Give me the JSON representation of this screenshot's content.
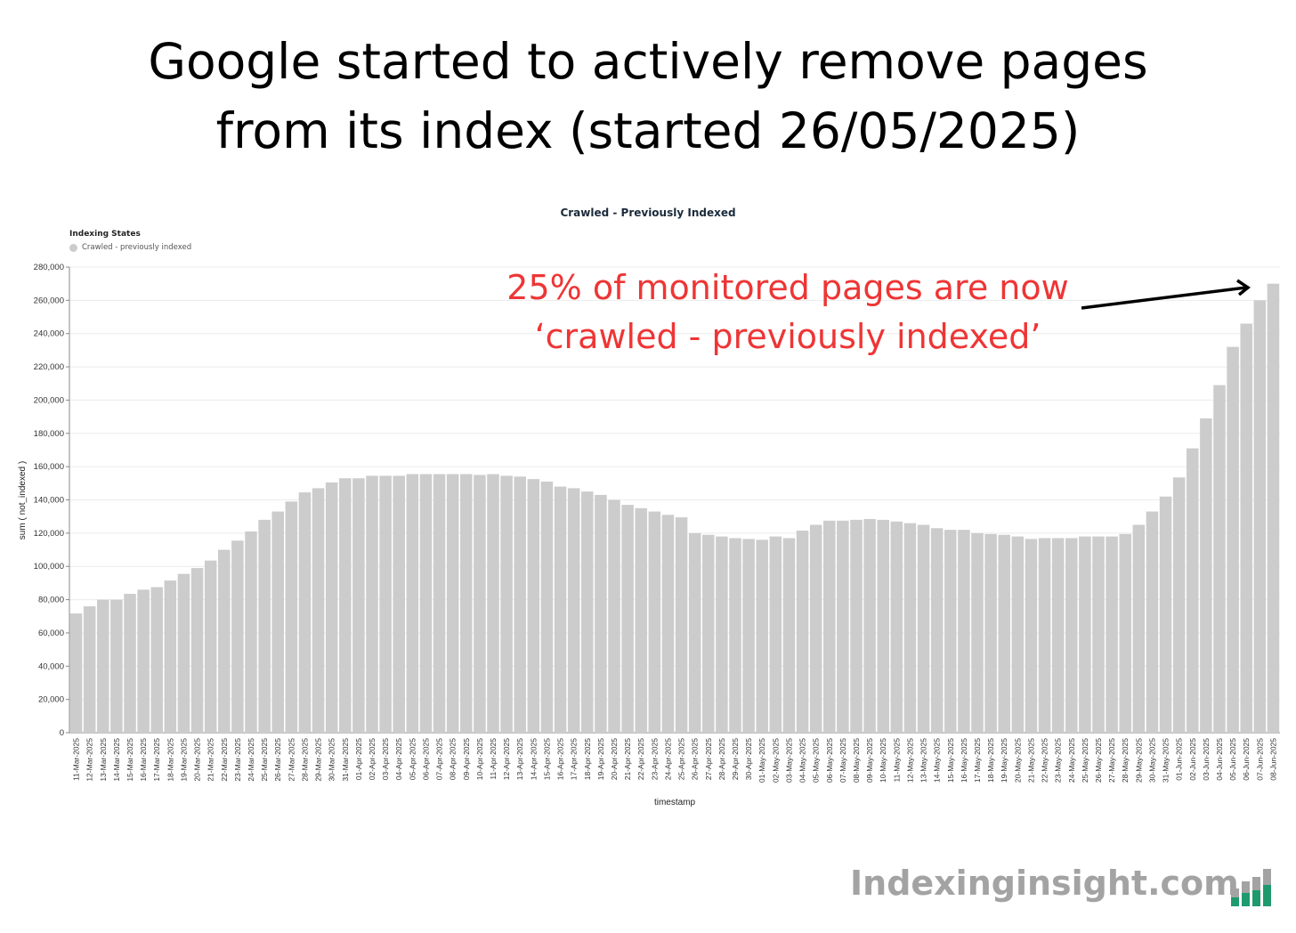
{
  "title_lines": [
    "Google started to actively remove pages",
    "from its index (started 26/05/2025)"
  ],
  "annotation_lines": [
    "25% of monitored pages are now",
    "‘crawled - previously indexed’"
  ],
  "logo_text": "Indexinginsight.com",
  "colors": {
    "bar": "#cccccc",
    "annotation": "#ee3535",
    "logo_green": "#1f9a6e",
    "logo_gray": "#a3a3a3"
  },
  "chart_data": {
    "type": "bar",
    "title": "Crawled - Previously Indexed",
    "xlabel": "timestamp",
    "ylabel": "sum ( not_indexed )",
    "ylim": [
      0,
      280000
    ],
    "yticks": [
      0,
      20000,
      40000,
      60000,
      80000,
      100000,
      120000,
      140000,
      160000,
      180000,
      200000,
      220000,
      240000,
      260000,
      280000
    ],
    "grid": true,
    "legend": {
      "title": "Indexing States",
      "placement": "top-left",
      "entries": [
        "Crawled - previously indexed"
      ]
    },
    "categories": [
      "11-Mar-2025",
      "12-Mar-2025",
      "13-Mar-2025",
      "14-Mar-2025",
      "15-Mar-2025",
      "16-Mar-2025",
      "17-Mar-2025",
      "18-Mar-2025",
      "19-Mar-2025",
      "20-Mar-2025",
      "21-Mar-2025",
      "22-Mar-2025",
      "23-Mar-2025",
      "24-Mar-2025",
      "25-Mar-2025",
      "26-Mar-2025",
      "27-Mar-2025",
      "28-Mar-2025",
      "29-Mar-2025",
      "30-Mar-2025",
      "31-Mar-2025",
      "01-Apr-2025",
      "02-Apr-2025",
      "03-Apr-2025",
      "04-Apr-2025",
      "05-Apr-2025",
      "06-Apr-2025",
      "07-Apr-2025",
      "08-Apr-2025",
      "09-Apr-2025",
      "10-Apr-2025",
      "11-Apr-2025",
      "12-Apr-2025",
      "13-Apr-2025",
      "14-Apr-2025",
      "15-Apr-2025",
      "16-Apr-2025",
      "17-Apr-2025",
      "18-Apr-2025",
      "19-Apr-2025",
      "20-Apr-2025",
      "21-Apr-2025",
      "22-Apr-2025",
      "23-Apr-2025",
      "24-Apr-2025",
      "25-Apr-2025",
      "26-Apr-2025",
      "27-Apr-2025",
      "28-Apr-2025",
      "29-Apr-2025",
      "30-Apr-2025",
      "01-May-2025",
      "02-May-2025",
      "03-May-2025",
      "04-May-2025",
      "05-May-2025",
      "06-May-2025",
      "07-May-2025",
      "08-May-2025",
      "09-May-2025",
      "10-May-2025",
      "11-May-2025",
      "12-May-2025",
      "13-May-2025",
      "14-May-2025",
      "15-May-2025",
      "16-May-2025",
      "17-May-2025",
      "18-May-2025",
      "19-May-2025",
      "20-May-2025",
      "21-May-2025",
      "22-May-2025",
      "23-May-2025",
      "24-May-2025",
      "25-May-2025",
      "26-May-2025",
      "27-May-2025",
      "28-May-2025",
      "29-May-2025",
      "30-May-2025",
      "31-May-2025",
      "01-Jun-2025",
      "02-Jun-2025",
      "03-Jun-2025",
      "04-Jun-2025",
      "05-Jun-2025",
      "06-Jun-2025",
      "07-Jun-2025",
      "08-Jun-2025"
    ],
    "values": [
      71700,
      76000,
      80000,
      80000,
      83500,
      86000,
      87500,
      91500,
      95500,
      99000,
      103500,
      110000,
      115500,
      121000,
      128000,
      133000,
      139000,
      144500,
      147000,
      150500,
      153000,
      153000,
      154500,
      154500,
      154500,
      155500,
      155500,
      155500,
      155500,
      155500,
      155000,
      155500,
      154500,
      154000,
      152500,
      151000,
      148000,
      147000,
      145000,
      143000,
      140000,
      137000,
      135000,
      133000,
      131000,
      129500,
      120000,
      119000,
      118000,
      117000,
      116500,
      116000,
      118000,
      117000,
      121500,
      125000,
      127500,
      127500,
      128000,
      128500,
      128000,
      127000,
      126000,
      125000,
      123000,
      122000,
      122000,
      120000,
      119500,
      119000,
      118000,
      116500,
      117000,
      117000,
      117000,
      118000,
      118000,
      118000,
      119500,
      125000,
      133000,
      142000,
      153500,
      171000,
      189000,
      209000,
      232000,
      246000,
      260000,
      270000
    ]
  }
}
